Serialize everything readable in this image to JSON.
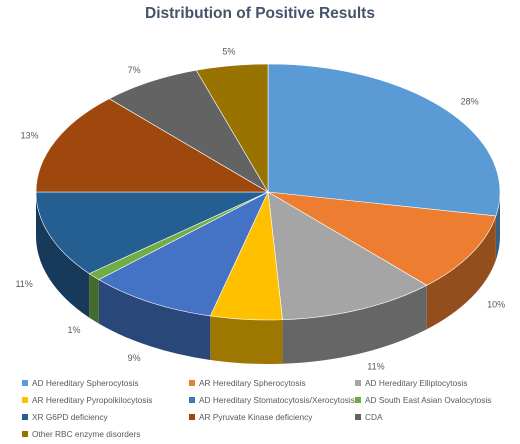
{
  "chart_data": {
    "type": "pie",
    "style": "3d",
    "title": "Distribution of Positive Results",
    "legend_position": "bottom",
    "slices": [
      {
        "name": "AD Hereditary Spherocytosis",
        "value": 28,
        "label": "28%",
        "color": "#5b9bd5"
      },
      {
        "name": "AR Hereditary Spherocytosis",
        "value": 10,
        "label": "10%",
        "color": "#ed7d31"
      },
      {
        "name": "AD Hereditary Elliptocytosis",
        "value": 11,
        "label": "11%",
        "color": "#a5a5a5"
      },
      {
        "name": "AR Hereditary Pyropoikilocytosis",
        "value": 5,
        "label": "5%",
        "color": "#ffc000"
      },
      {
        "name": "AD Hereditary Stomatocytosis/Xerocytosis",
        "value": 9,
        "label": "9%",
        "color": "#4472c4"
      },
      {
        "name": "AD South East Asian Ovalocytosis",
        "value": 1,
        "label": "1%",
        "color": "#70ad47"
      },
      {
        "name": "XR G6PD deficiency",
        "value": 11,
        "label": "11%",
        "color": "#255e91"
      },
      {
        "name": "AR Pyruvate Kinase deficiency",
        "value": 13,
        "label": "13%",
        "color": "#9e480e"
      },
      {
        "name": "CDA",
        "value": 7,
        "label": "7%",
        "color": "#636363"
      },
      {
        "name": "Other RBC enzyme disorders",
        "value": 5,
        "label": "5%",
        "color": "#997300"
      }
    ]
  }
}
